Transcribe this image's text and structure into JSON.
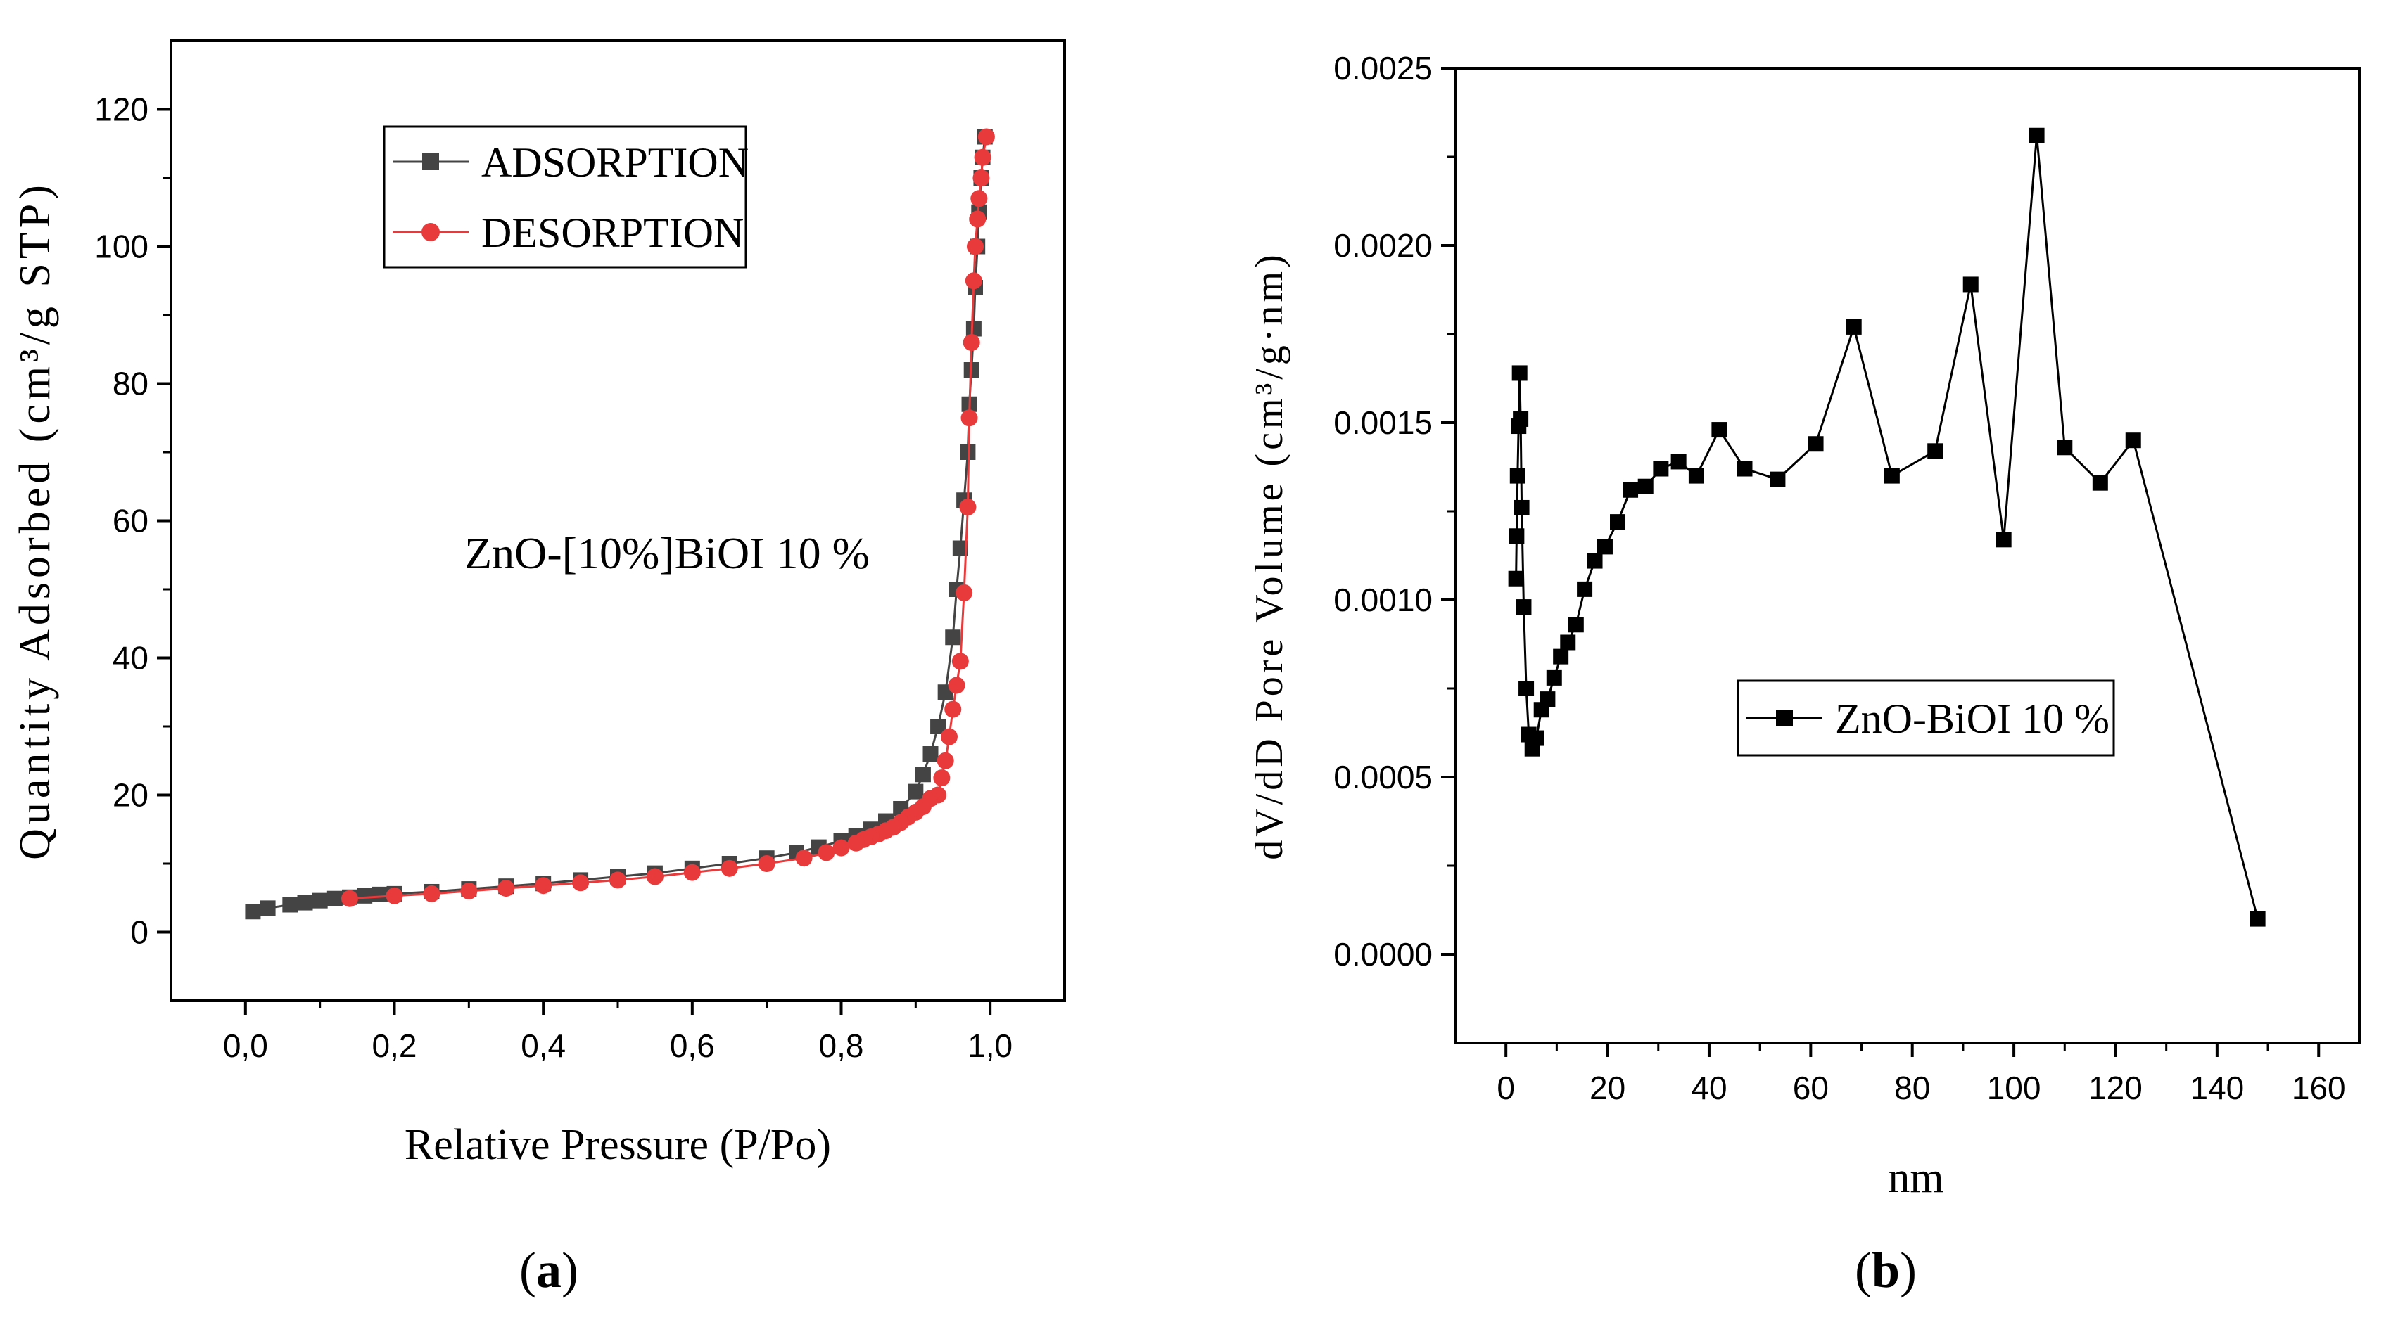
{
  "chart_data": [
    {
      "type": "scatter",
      "panel_label": "a",
      "annotation": "ZnO-[10%]BiOI 10 %",
      "xlabel": "Relative Pressure (P/Po)",
      "ylabel": "Quantity Adsorbed (cm³/g STP)",
      "xlim": [
        -0.1,
        1.1
      ],
      "ylim": [
        -10,
        130
      ],
      "xticks": [
        "0,0",
        "0,2",
        "0,4",
        "0,6",
        "0,8",
        "1,0"
      ],
      "xtick_values": [
        0,
        0.2,
        0.4,
        0.6,
        0.8,
        1.0
      ],
      "yticks": [
        "0",
        "20",
        "40",
        "60",
        "80",
        "100",
        "120"
      ],
      "ytick_values": [
        0,
        20,
        40,
        60,
        80,
        100,
        120
      ],
      "legend_position": "top-left",
      "grid": false,
      "series": [
        {
          "name": "ADSORPTION",
          "color": "#444444",
          "marker": "square",
          "x": [
            0.01,
            0.03,
            0.06,
            0.08,
            0.1,
            0.12,
            0.14,
            0.16,
            0.18,
            0.2,
            0.25,
            0.3,
            0.35,
            0.4,
            0.45,
            0.5,
            0.55,
            0.6,
            0.65,
            0.7,
            0.74,
            0.77,
            0.8,
            0.82,
            0.84,
            0.86,
            0.88,
            0.9,
            0.91,
            0.92,
            0.93,
            0.94,
            0.95,
            0.955,
            0.96,
            0.965,
            0.97,
            0.972,
            0.975,
            0.978,
            0.98,
            0.983,
            0.985,
            0.988,
            0.99,
            0.993
          ],
          "y": [
            3.0,
            3.5,
            4.0,
            4.3,
            4.6,
            4.9,
            5.1,
            5.3,
            5.5,
            5.6,
            5.9,
            6.3,
            6.7,
            7.1,
            7.6,
            8.1,
            8.6,
            9.3,
            10.0,
            10.8,
            11.6,
            12.4,
            13.3,
            14.0,
            15.0,
            16.2,
            18.0,
            20.5,
            23.0,
            26.0,
            30.0,
            35.0,
            43.0,
            50.0,
            56.0,
            63.0,
            70.0,
            77.0,
            82.0,
            88.0,
            94.0,
            100.0,
            105.0,
            110.0,
            113.0,
            116.0
          ]
        },
        {
          "name": "DESORPTION",
          "color": "#e8393b",
          "marker": "circle",
          "x": [
            0.995,
            0.99,
            0.988,
            0.985,
            0.983,
            0.98,
            0.978,
            0.975,
            0.972,
            0.97,
            0.965,
            0.96,
            0.955,
            0.95,
            0.945,
            0.94,
            0.935,
            0.93,
            0.92,
            0.91,
            0.9,
            0.89,
            0.88,
            0.87,
            0.86,
            0.85,
            0.84,
            0.83,
            0.82,
            0.8,
            0.78,
            0.75,
            0.7,
            0.65,
            0.6,
            0.55,
            0.5,
            0.45,
            0.4,
            0.35,
            0.3,
            0.25,
            0.2,
            0.14
          ],
          "y": [
            116.0,
            113.0,
            110.0,
            107.0,
            104.0,
            100.0,
            95.0,
            86.0,
            75.0,
            62.0,
            49.5,
            39.5,
            36.0,
            32.5,
            28.5,
            25.0,
            22.5,
            20.0,
            19.5,
            18.3,
            17.5,
            16.8,
            16.0,
            15.3,
            14.8,
            14.3,
            13.9,
            13.5,
            13.0,
            12.3,
            11.6,
            10.8,
            10.0,
            9.3,
            8.7,
            8.1,
            7.6,
            7.2,
            6.8,
            6.4,
            6.0,
            5.6,
            5.3,
            4.9
          ]
        }
      ]
    },
    {
      "type": "line",
      "panel_label": "b",
      "xlabel": "nm",
      "ylabel": "dV/dD Pore Volume (cm³/g·nm)",
      "xlim": [
        -10,
        168
      ],
      "ylim": [
        -0.00025,
        0.0025
      ],
      "xticks": [
        "0",
        "20",
        "40",
        "60",
        "80",
        "100",
        "120",
        "140",
        "160"
      ],
      "xtick_values": [
        0,
        20,
        40,
        60,
        80,
        100,
        120,
        140,
        160
      ],
      "yticks": [
        "0.0000",
        "0.0005",
        "0.0010",
        "0.0015",
        "0.0020",
        "0.0025"
      ],
      "ytick_values": [
        0,
        0.0005,
        0.001,
        0.0015,
        0.002,
        0.0025
      ],
      "legend_position": "center-right",
      "grid": false,
      "series": [
        {
          "name": "ZnO-BiOI 10 %",
          "color": "#000000",
          "marker": "square",
          "x": [
            2.0,
            2.1,
            2.3,
            2.5,
            2.7,
            2.9,
            3.1,
            3.5,
            4.0,
            4.5,
            5.2,
            6.0,
            7.0,
            8.2,
            9.5,
            10.8,
            12.2,
            13.8,
            15.5,
            17.5,
            19.5,
            22.0,
            24.5,
            27.5,
            30.5,
            34.0,
            37.5,
            42.0,
            47.0,
            53.5,
            61.0,
            68.5,
            76.0,
            84.5,
            91.5,
            98.0,
            104.5,
            110.0,
            117.0,
            123.5,
            148.0
          ],
          "y": [
            0.00106,
            0.00118,
            0.00135,
            0.00149,
            0.00164,
            0.00151,
            0.00126,
            0.00098,
            0.00075,
            0.00062,
            0.00058,
            0.00061,
            0.00069,
            0.00072,
            0.00078,
            0.00084,
            0.00088,
            0.00093,
            0.00103,
            0.00111,
            0.00115,
            0.00122,
            0.00131,
            0.00132,
            0.00137,
            0.00139,
            0.00135,
            0.00148,
            0.00137,
            0.00134,
            0.00144,
            0.00177,
            0.00135,
            0.00142,
            0.00189,
            0.00117,
            0.00231,
            0.00143,
            0.00133,
            0.00145,
            0.0001
          ]
        }
      ]
    }
  ]
}
